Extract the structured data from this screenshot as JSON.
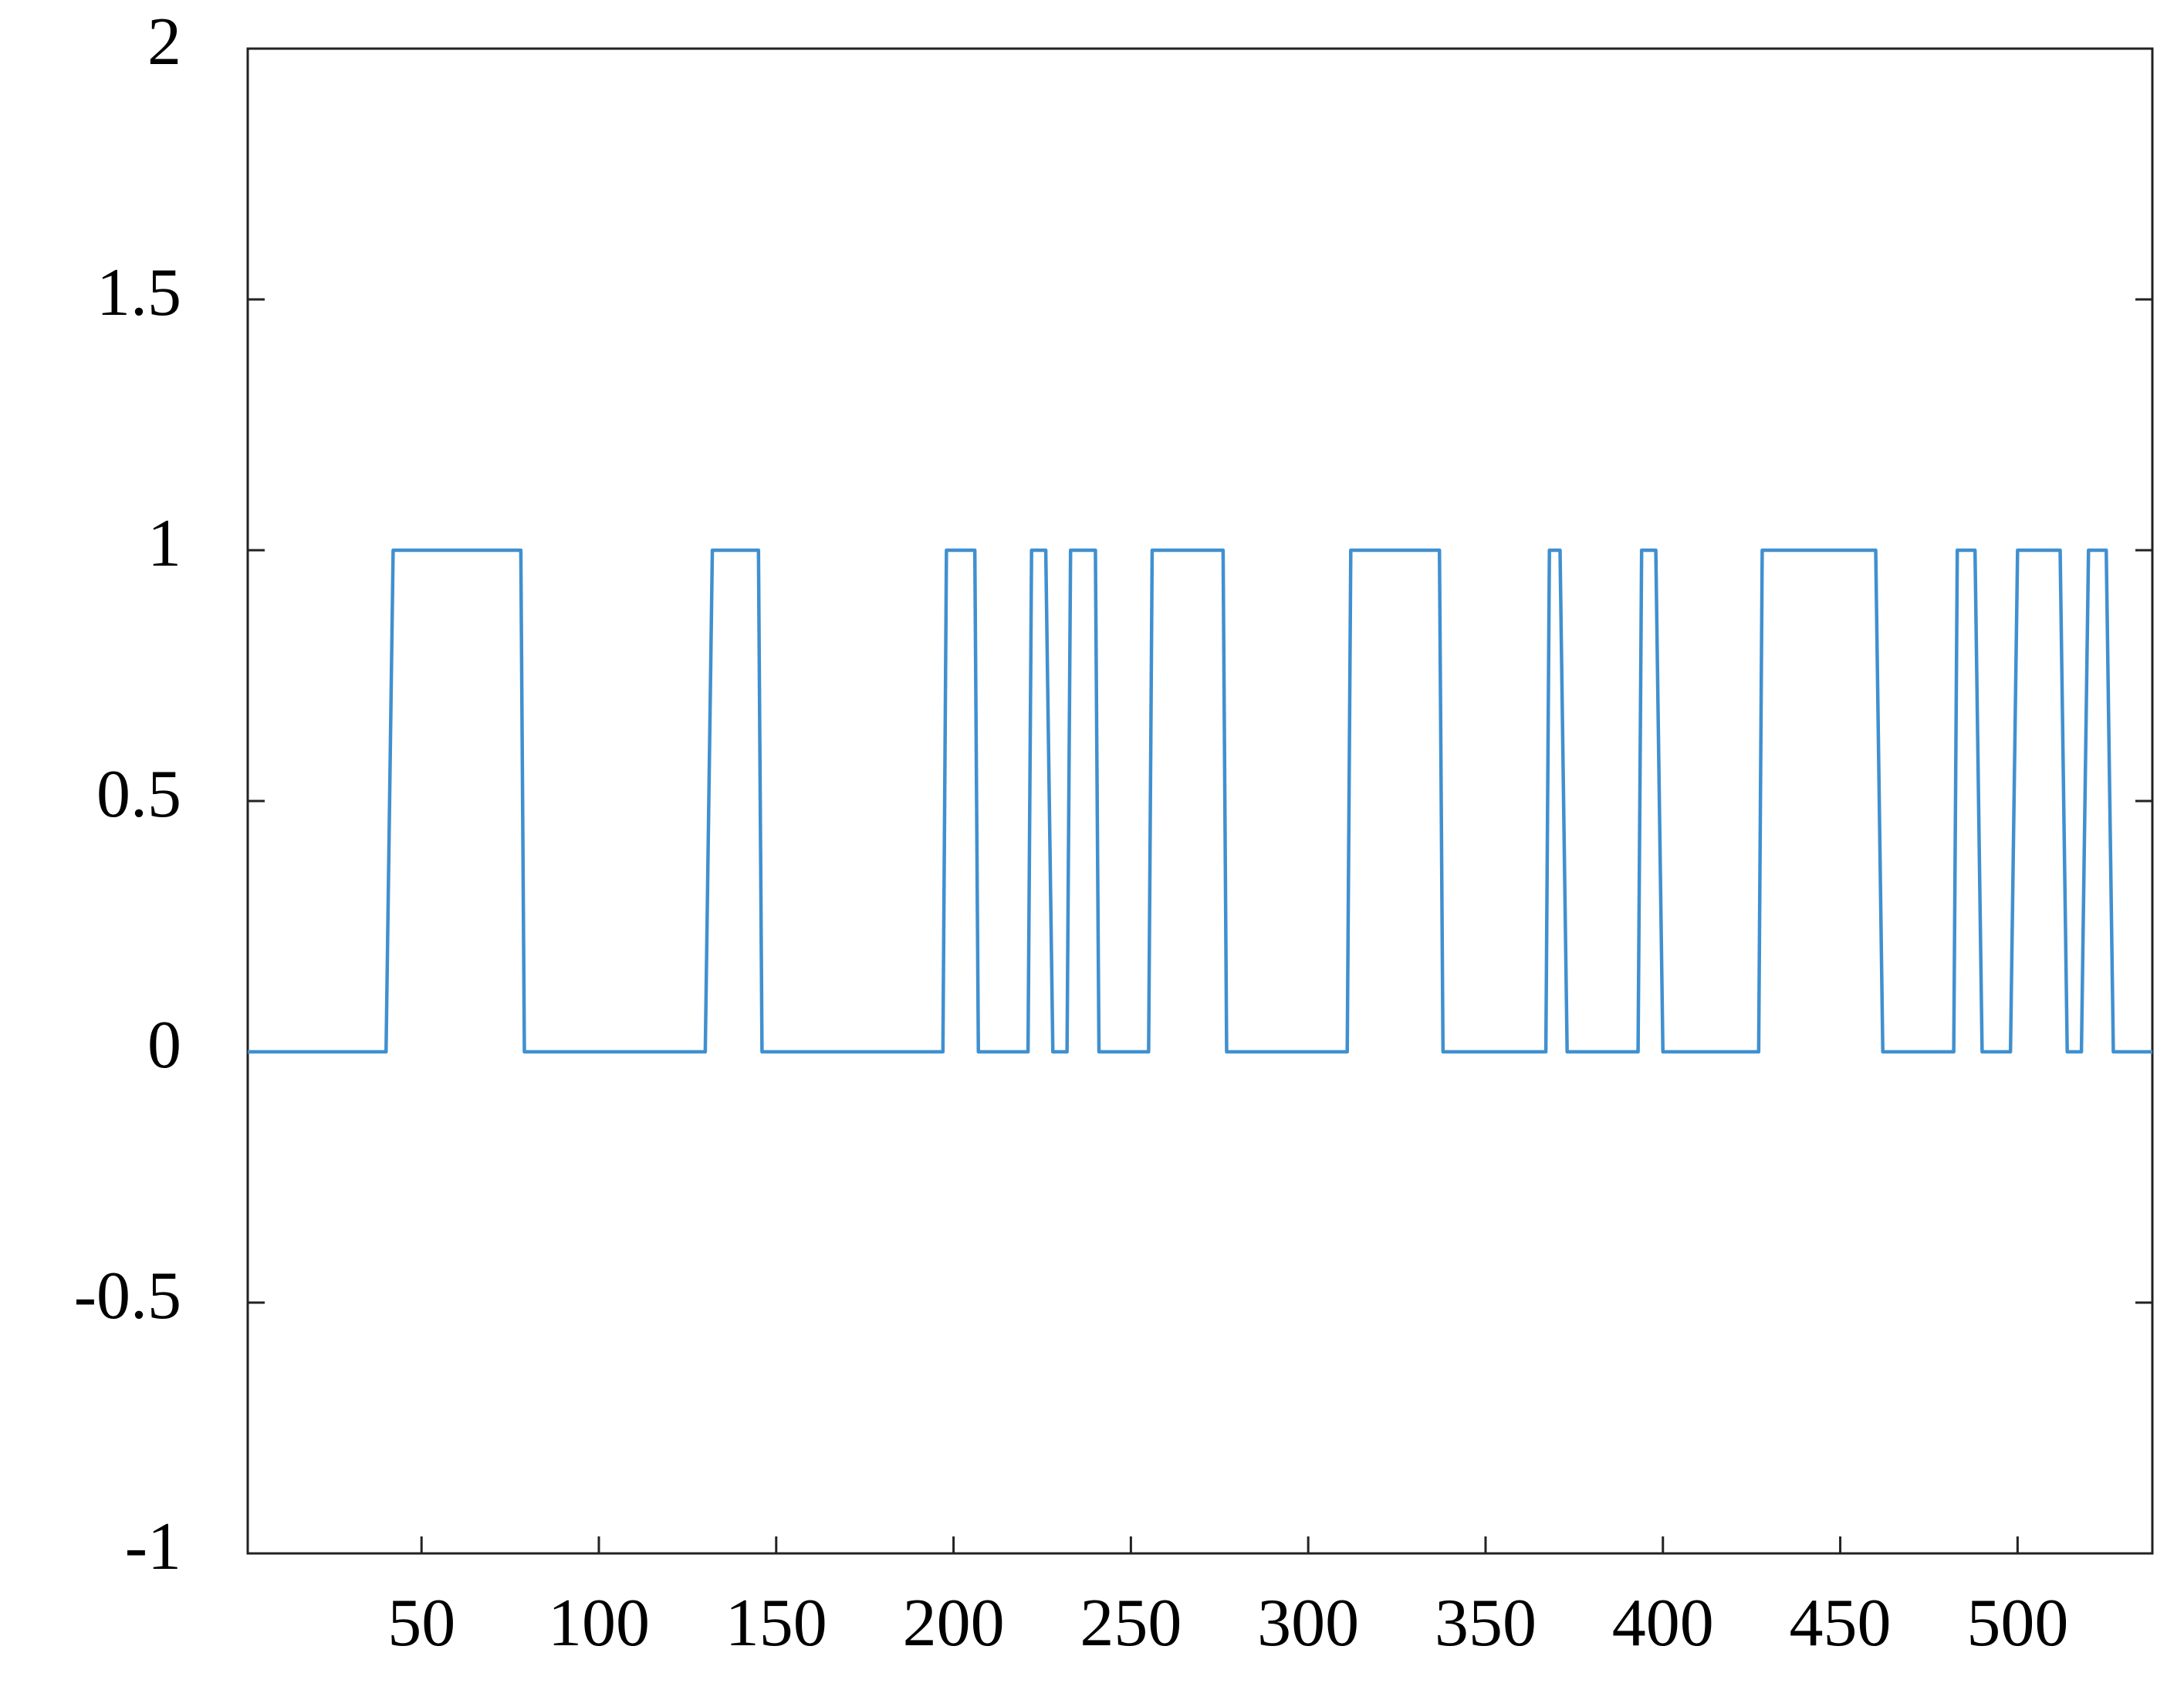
{
  "chart_data": {
    "type": "line",
    "color": "#4090d0",
    "x": [
      1,
      40,
      42,
      78,
      79,
      130,
      132,
      145,
      146,
      197,
      198,
      206,
      207,
      221,
      222,
      226,
      228,
      232,
      233,
      240,
      241,
      255,
      256,
      276,
      277,
      311,
      312,
      337,
      338,
      367,
      368,
      371,
      373,
      393,
      394,
      398,
      400,
      427,
      428,
      460,
      462,
      482,
      483,
      488,
      490,
      498,
      500,
      512,
      514,
      518,
      520,
      525,
      527,
      538
    ],
    "values": [
      0,
      0,
      1,
      1,
      0,
      0,
      1,
      1,
      0,
      0,
      1,
      1,
      0,
      0,
      1,
      1,
      0,
      0,
      1,
      1,
      0,
      0,
      1,
      1,
      0,
      0,
      1,
      1,
      0,
      0,
      1,
      1,
      0,
      0,
      1,
      1,
      0,
      0,
      1,
      1,
      0,
      0,
      1,
      1,
      0,
      0,
      1,
      1,
      0,
      0,
      1,
      1,
      0,
      0
    ],
    "xlim": [
      1,
      538
    ],
    "xticks": [
      50,
      100,
      150,
      200,
      250,
      300,
      350,
      400,
      450,
      500
    ],
    "ylim": [
      -1,
      2
    ],
    "yticks": [
      -1,
      -0.5,
      0,
      0.5,
      1,
      1.5,
      2
    ]
  }
}
